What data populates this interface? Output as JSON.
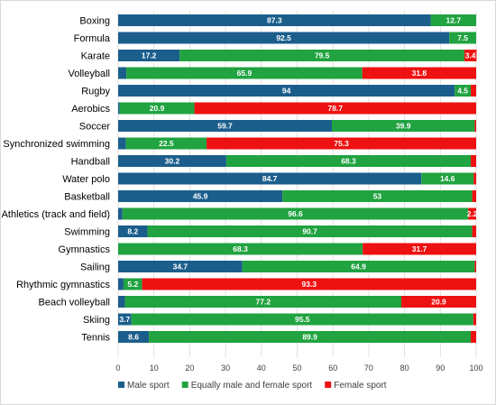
{
  "chart_data": {
    "type": "bar",
    "orientation": "horizontal",
    "stacked": true,
    "title": "",
    "xlabel": "",
    "ylabel": "",
    "xlim": [
      0,
      100
    ],
    "x_ticks": [
      "0",
      "10",
      "20",
      "30",
      "40",
      "50",
      "60",
      "70",
      "80",
      "90",
      "100"
    ],
    "grid": true,
    "legend_position": "bottom",
    "categories": [
      "Boxing",
      "Formula",
      "Karate",
      "Volleyball",
      "Rugby",
      "Aerobics",
      "Soccer",
      "Synchronized swimming",
      "Handball",
      "Water polo",
      "Basketball",
      "Athletics (track and field)",
      "Swimming",
      "Gymnastics",
      "Sailing",
      "Rhythmic gymnastics",
      "Beach volleyball",
      "Skiing",
      "Tennis"
    ],
    "series": [
      {
        "name": "Male sport",
        "color": "#1b5e8c",
        "values": [
          87.3,
          92.5,
          17.2,
          2.3,
          94,
          0.4,
          59.7,
          2.2,
          30.2,
          84.7,
          45.9,
          1.2,
          8.2,
          0,
          34.7,
          1.5,
          1.9,
          3.7,
          8.6
        ],
        "labels": [
          "87.3",
          "92.5",
          "17.2",
          "",
          "94",
          "",
          "59.7",
          "",
          "30.2",
          "84.7",
          "45.9",
          "",
          "8.2",
          "",
          "34.7",
          "",
          "",
          "3.7",
          "8.6"
        ]
      },
      {
        "name": "Equally male and female sport",
        "color": "#20a340",
        "values": [
          12.7,
          7.5,
          79.5,
          65.9,
          4.5,
          20.9,
          39.9,
          22.5,
          68.3,
          14.6,
          53,
          96.6,
          90.7,
          68.3,
          64.9,
          5.2,
          77.2,
          95.5,
          89.9
        ],
        "labels": [
          "12.7",
          "7.5",
          "79.5",
          "65.9",
          "4.5",
          "20.9",
          "39.9",
          "22.5",
          "68.3",
          "14.6",
          "53",
          "96.6",
          "90.7",
          "68.3",
          "64.9",
          "5.2",
          "77.2",
          "95.5",
          "89.9"
        ]
      },
      {
        "name": "Female sport",
        "color": "#ee1111",
        "values": [
          0,
          0,
          3.4,
          31.8,
          1.5,
          78.7,
          0.4,
          75.3,
          1.5,
          0.7,
          1.1,
          2.2,
          1.1,
          31.7,
          0.4,
          93.3,
          20.9,
          0.8,
          1.5
        ],
        "labels": [
          "",
          "",
          "3.4",
          "31.8",
          "",
          "78.7",
          "",
          "75.3",
          "",
          "",
          "",
          "2.2",
          "",
          "31.7",
          "",
          "93.3",
          "20.9",
          "",
          ""
        ]
      }
    ]
  }
}
